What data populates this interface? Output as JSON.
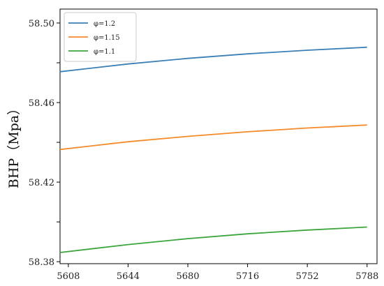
{
  "chart_data": {
    "type": "line",
    "title": "",
    "xlabel": "",
    "ylabel": "BHP（Mpa）",
    "xlim": [
      5603,
      5794
    ],
    "ylim": [
      58.379,
      58.507
    ],
    "x_ticks": [
      5608,
      5644,
      5680,
      5716,
      5752,
      5788
    ],
    "y_ticks": [
      58.38,
      58.42,
      58.46,
      58.5
    ],
    "y_ticks_labels": [
      "58.38",
      "58.42",
      "58.46",
      "58.50"
    ],
    "y_minor_ticks": [
      58.4,
      58.44,
      58.48
    ],
    "grid": false,
    "legend_position": "top-left",
    "series": [
      {
        "name": "φ=1.2",
        "color": "#3a7fb6",
        "x": [
          5603,
          5644,
          5680,
          5716,
          5752,
          5788
        ],
        "y": [
          58.4755,
          58.4794,
          58.4822,
          58.4845,
          58.4863,
          58.4878
        ]
      },
      {
        "name": "φ=1.15",
        "color": "#f48a2a",
        "x": [
          5603,
          5644,
          5680,
          5716,
          5752,
          5788
        ],
        "y": [
          58.4364,
          58.4403,
          58.443,
          58.4453,
          58.4472,
          58.4487
        ]
      },
      {
        "name": "φ=1.1",
        "color": "#3ba53b",
        "x": [
          5603,
          5644,
          5680,
          5716,
          5752,
          5788
        ],
        "y": [
          58.3846,
          58.3886,
          58.3916,
          58.394,
          58.3959,
          58.3974
        ]
      }
    ]
  }
}
